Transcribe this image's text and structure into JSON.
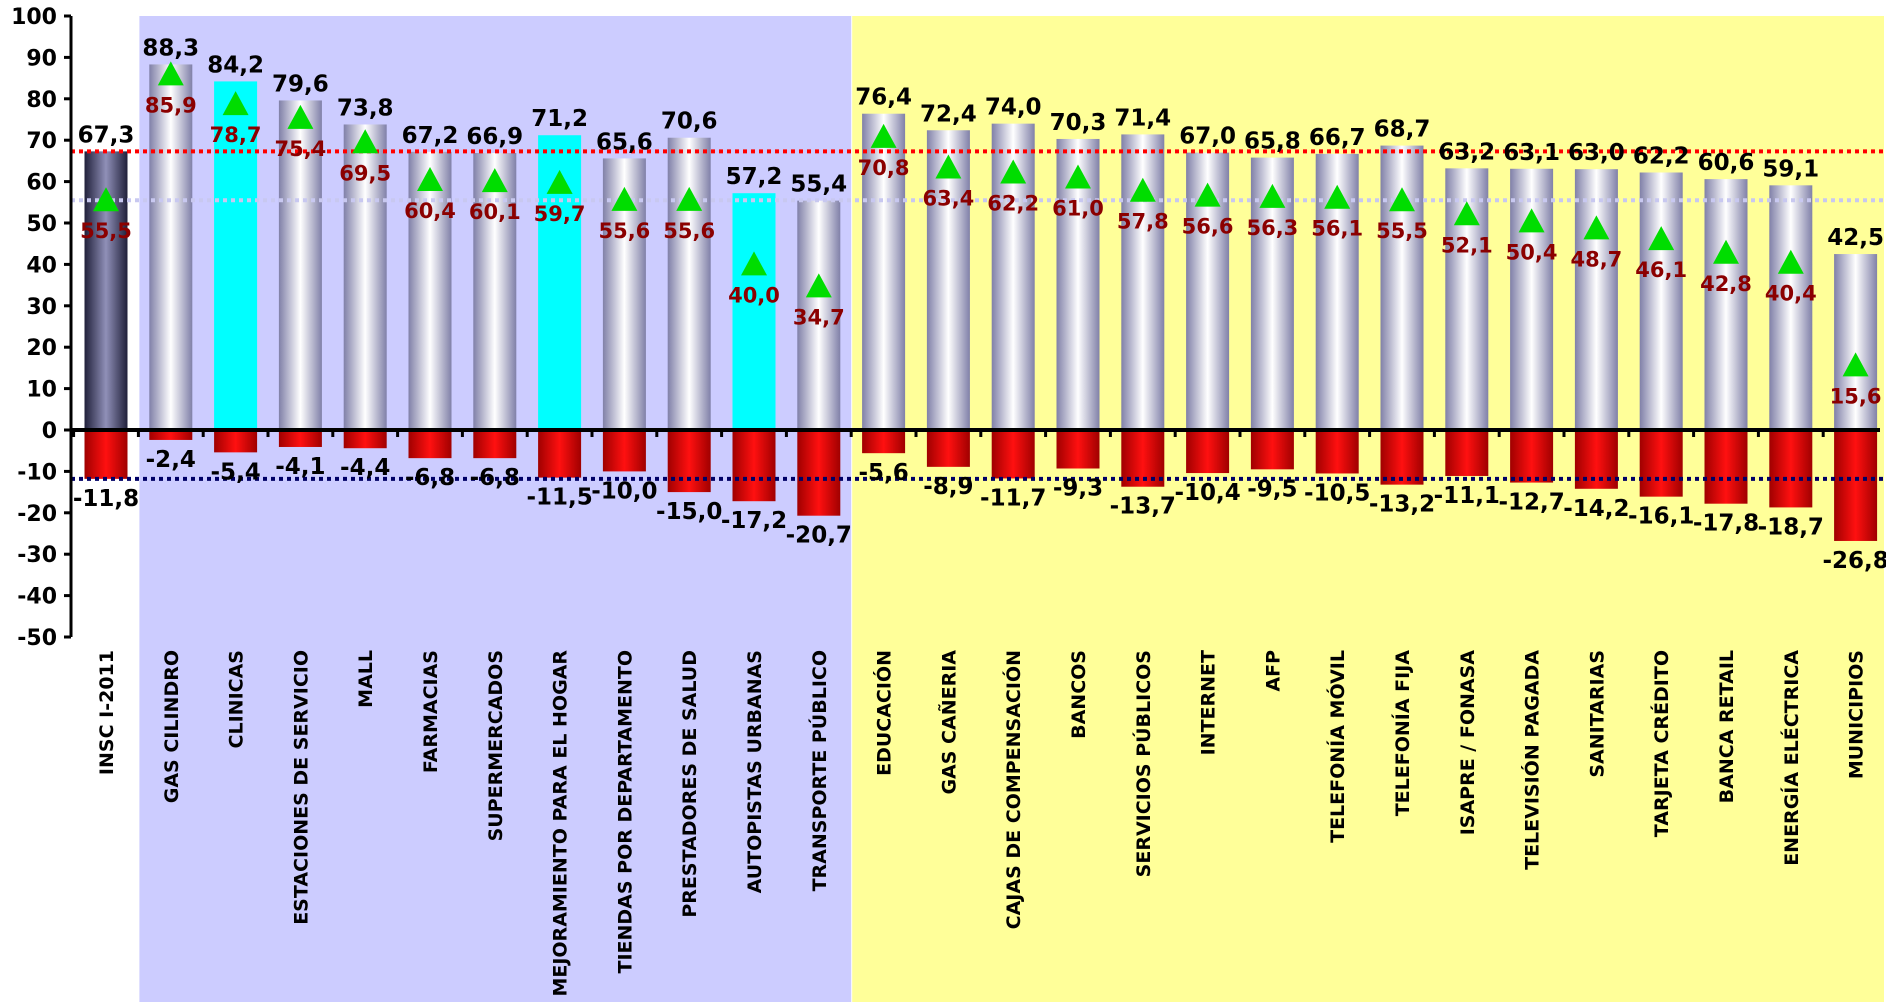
{
  "chart_data": {
    "type": "bar",
    "title": "",
    "xlabel": "",
    "ylabel": "",
    "ylim": [
      -50,
      100
    ],
    "yticks": [
      100,
      90,
      80,
      70,
      60,
      50,
      40,
      30,
      20,
      10,
      0,
      -10,
      -20,
      -30,
      -40,
      -50
    ],
    "grid": false,
    "legend": "none",
    "categories": [
      "INSC I-2011",
      "GAS CILINDRO",
      "CLINICAS",
      "ESTACIONES DE SERVICIO",
      "MALL",
      "FARMACIAS",
      "SUPERMERCADOS",
      "MEJORAMIENTO PARA EL HOGAR",
      "TIENDAS POR DEPARTAMENTO",
      "PRESTADORES DE SALUD",
      "AUTOPISTAS URBANAS",
      "TRANSPORTE PÚBLICO",
      "EDUCACIÓN",
      "GAS CAÑERIA",
      "CAJAS DE COMPENSACIÓN",
      "BANCOS",
      "SERVICIOS PÚBLICOS",
      "INTERNET",
      "AFP",
      "TELEFONÍA MÓVIL",
      "TELEFONÍA FIJA",
      "ISAPRE / FONASA",
      "TELEVISIÓN PAGADA",
      "SANITARIAS",
      "TARJETA CRÉDITO",
      "BANCA RETAIL",
      "ENERGÍA ELÉCTRICA",
      "MUNICIPIOS"
    ],
    "category_style": [
      "index",
      "normal",
      "cyan",
      "normal",
      "normal",
      "normal",
      "normal",
      "cyan",
      "normal",
      "normal",
      "cyan",
      "normal",
      "normal",
      "normal",
      "normal",
      "normal",
      "normal",
      "normal",
      "normal",
      "normal",
      "normal",
      "normal",
      "normal",
      "normal",
      "normal",
      "normal",
      "normal",
      "normal"
    ],
    "series": [
      {
        "role": "positive_bars",
        "values": [
          67.3,
          88.3,
          84.2,
          79.6,
          73.8,
          67.2,
          66.9,
          71.2,
          65.6,
          70.6,
          57.2,
          55.4,
          76.4,
          72.4,
          74.0,
          70.3,
          71.4,
          67.0,
          65.8,
          66.7,
          68.7,
          63.2,
          63.1,
          63.0,
          62.2,
          60.6,
          59.1,
          42.5
        ],
        "labels": [
          "67,3",
          "88,3",
          "84,2",
          "79,6",
          "73,8",
          "67,2",
          "66,9",
          "71,2",
          "65,6",
          "70,6",
          "57,2",
          "55,4",
          "76,4",
          "72,4",
          "74,0",
          "70,3",
          "71,4",
          "67,0",
          "65,8",
          "66,7",
          "68,7",
          "63,2",
          "63,1",
          "63,0",
          "62,2",
          "60,6",
          "59,1",
          "42,5"
        ]
      },
      {
        "role": "negative_bars",
        "values": [
          -11.8,
          -2.4,
          -5.4,
          -4.1,
          -4.4,
          -6.8,
          -6.8,
          -11.5,
          -10.0,
          -15.0,
          -17.2,
          -20.7,
          -5.6,
          -8.9,
          -11.7,
          -9.3,
          -13.7,
          -10.4,
          -9.5,
          -10.5,
          -13.2,
          -11.1,
          -12.7,
          -14.2,
          -16.1,
          -17.8,
          -18.7,
          -26.8
        ],
        "labels": [
          "-11,8",
          "-2,4",
          "-5,4",
          "-4,1",
          "-4,4",
          "-6,8",
          "-6,8",
          "-11,5",
          "-10,0",
          "-15,0",
          "-17,2",
          "-20,7",
          "-5,6",
          "-8,9",
          "-11,7",
          "-9,3",
          "-13,7",
          "-10,4",
          "-9,5",
          "-10,5",
          "-13,2",
          "-11,1",
          "-12,7",
          "-14,2",
          "-16,1",
          "-17,8",
          "-18,7",
          "-26,8"
        ]
      },
      {
        "role": "triangle_markers",
        "values": [
          55.5,
          85.9,
          78.7,
          75.4,
          69.5,
          60.4,
          60.1,
          59.7,
          55.6,
          55.6,
          40.0,
          34.7,
          70.8,
          63.4,
          62.2,
          61.0,
          57.8,
          56.6,
          56.3,
          56.1,
          55.5,
          52.1,
          50.4,
          48.7,
          46.1,
          42.8,
          40.4,
          15.6
        ],
        "labels": [
          "55,5",
          "85,9",
          "78,7",
          "75,4",
          "69,5",
          "60,4",
          "60,1",
          "59,7",
          "55,6",
          "55,6",
          "40,0",
          "34,7",
          "70,8",
          "63,4",
          "62,2",
          "61,0",
          "57,8",
          "56,6",
          "56,3",
          "56,1",
          "55,5",
          "52,1",
          "50,4",
          "48,7",
          "46,1",
          "42,8",
          "40,4",
          "15,6"
        ]
      }
    ],
    "reference_lines": [
      {
        "value": 67.3,
        "color": "#ff0000"
      },
      {
        "value": 55.5,
        "color": "#c8c8f0"
      },
      {
        "value": -11.8,
        "color": "#000066"
      }
    ],
    "regions": [
      {
        "from_index": 1,
        "to_index": 11,
        "color": "#ccccff"
      },
      {
        "from_index": 12,
        "to_index": 27,
        "color": "#ffff99"
      }
    ],
    "colors": {
      "positive_bar": "#a8a8c8",
      "index_bar": "#3a3a5c",
      "cyan_bar": "#00ffff",
      "negative_bar": "#ff0000",
      "marker": "#00dd00",
      "marker_label": "#8b0000"
    }
  }
}
